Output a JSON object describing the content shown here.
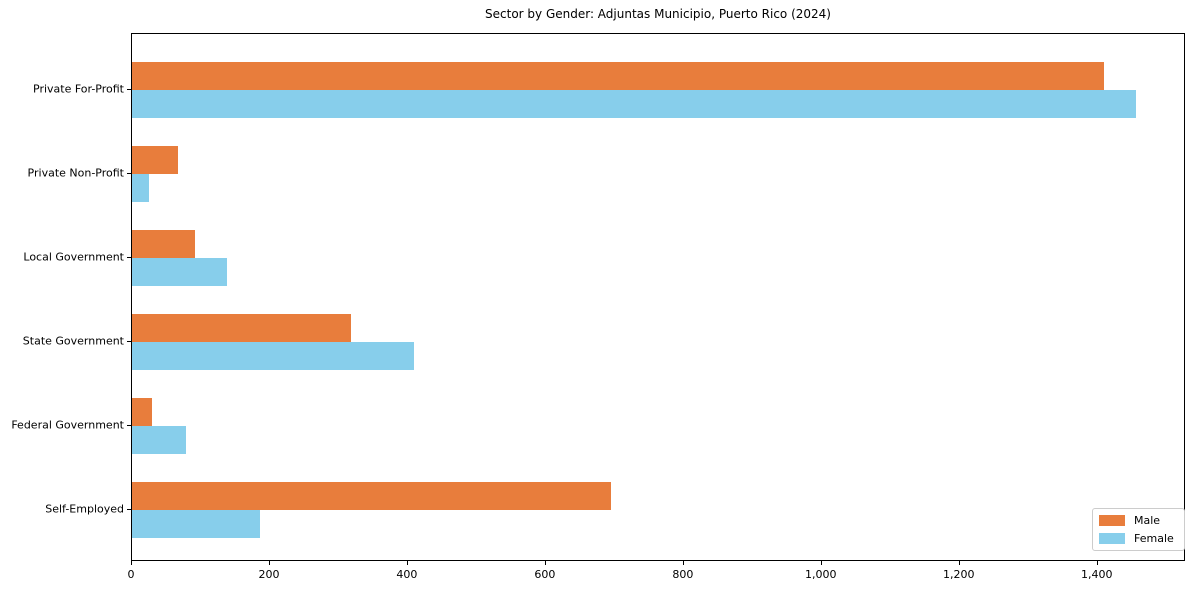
{
  "page": {
    "background": "#ffffff"
  },
  "chart_data": {
    "type": "bar",
    "orientation": "horizontal",
    "title": "Sector by Gender: Adjuntas Municipio, Puerto Rico (2024)",
    "categories": [
      "Private For-Profit",
      "Private Non-Profit",
      "Local Government",
      "State Government",
      "Federal Government",
      "Self-Employed"
    ],
    "series": [
      {
        "name": "Male",
        "color": "#E87D3C",
        "values": [
          1409,
          67,
          92,
          317,
          29,
          694
        ]
      },
      {
        "name": "Female",
        "color": "#87CEEB",
        "values": [
          1455,
          25,
          137,
          409,
          78,
          185
        ]
      }
    ],
    "xlabel": "",
    "ylabel": "",
    "xlim": [
      0,
      1528
    ],
    "xticks": [
      0,
      200,
      400,
      600,
      800,
      1000,
      1200,
      1400
    ],
    "xtick_labels": [
      "0",
      "200",
      "400",
      "600",
      "800",
      "1,000",
      "1,200",
      "1,400"
    ],
    "grid": false,
    "legend": {
      "position": "lower right",
      "entries": [
        "Male",
        "Female"
      ]
    }
  }
}
